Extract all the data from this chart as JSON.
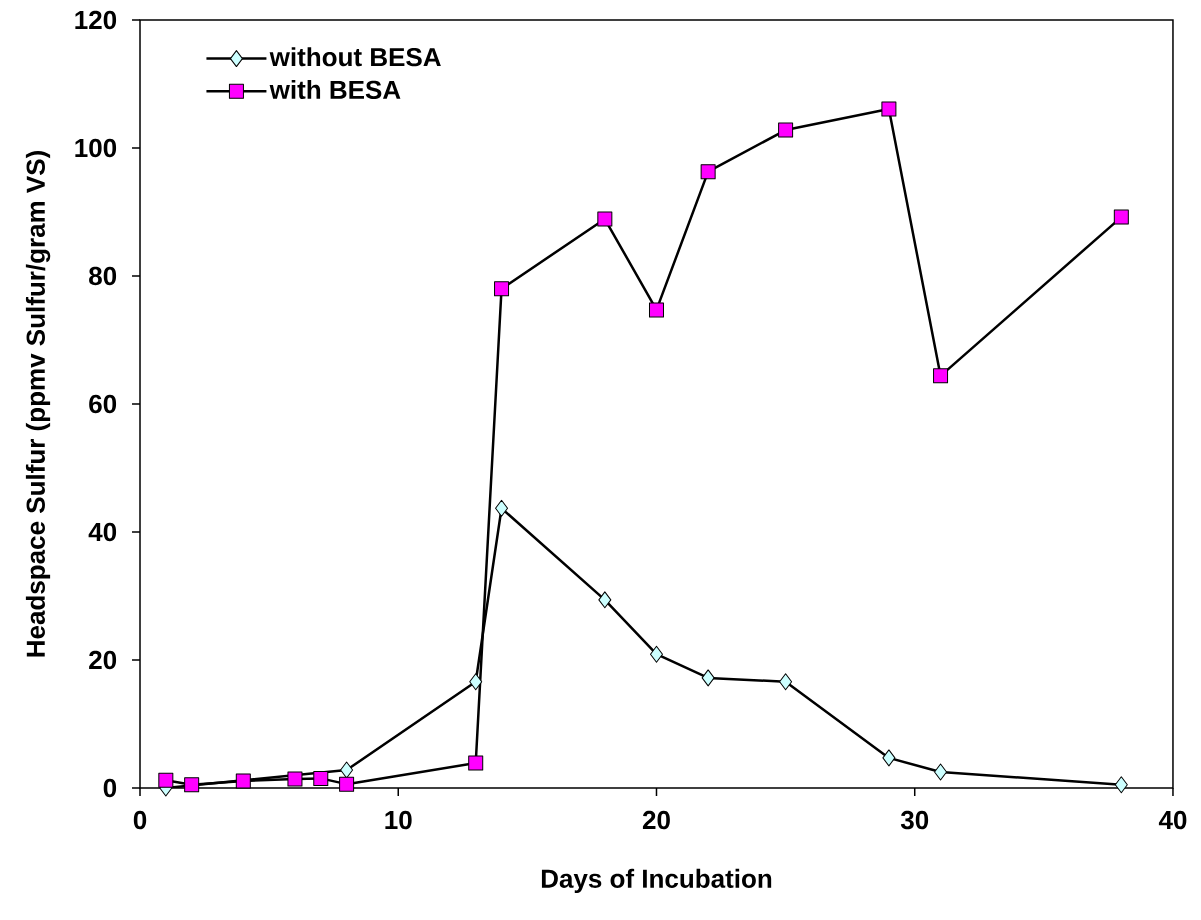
{
  "chart_data": {
    "type": "line",
    "xlabel": "Days of Incubation",
    "ylabel": "Headspace Sulfur (ppmv Sulfur/gram VS)",
    "x": [
      1,
      2,
      4,
      6,
      7,
      8,
      13,
      14,
      18,
      20,
      22,
      25,
      29,
      31,
      38
    ],
    "series": [
      {
        "name": "without BESA",
        "color": "#ccffff",
        "marker": "diamond",
        "values": [
          0,
          null,
          null,
          null,
          null,
          2.8,
          16.6,
          43.7,
          29.4,
          20.9,
          17.2,
          16.6,
          4.7,
          2.5,
          0.5
        ]
      },
      {
        "name": "with BESA",
        "color": "#ff00ff",
        "marker": "square",
        "values": [
          1.2,
          0.5,
          1.1,
          1.4,
          1.5,
          0.6,
          3.9,
          78,
          88.9,
          74.7,
          96.3,
          102.8,
          106.1,
          64.4,
          89.2
        ]
      }
    ],
    "xlim": [
      0,
      40
    ],
    "ylim": [
      0,
      120
    ],
    "xticks": [
      0,
      10,
      20,
      30,
      40
    ],
    "yticks": [
      0,
      20,
      40,
      60,
      80,
      100,
      120
    ],
    "grid": false,
    "legend": "top left",
    "line_style": "solid"
  }
}
